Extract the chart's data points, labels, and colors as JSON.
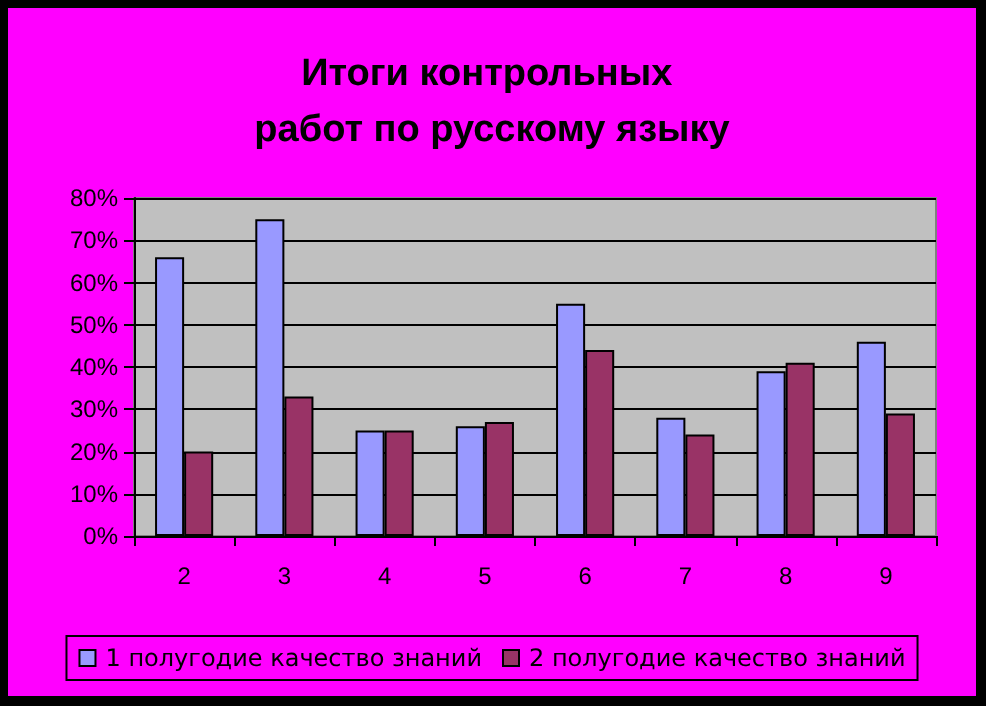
{
  "chart_data": {
    "type": "bar",
    "title": "Итоги контрольных работ по русскому языку",
    "categories": [
      "2",
      "3",
      "4",
      "5",
      "6",
      "7",
      "8",
      "9"
    ],
    "series": [
      {
        "name": "1 полугодие качество знаний",
        "color": "#9999ff",
        "values": [
          66,
          75,
          25,
          26,
          55,
          28,
          39,
          46
        ]
      },
      {
        "name": "2 полугодие качество знаний",
        "color": "#993366",
        "values": [
          20,
          33,
          25,
          27,
          44,
          24,
          41,
          29
        ]
      }
    ],
    "ylim": [
      0,
      80
    ],
    "yticks": [
      {
        "value": 0,
        "label": "0%"
      },
      {
        "value": 10,
        "label": "10%"
      },
      {
        "value": 20,
        "label": "20%"
      },
      {
        "value": 30,
        "label": "30%"
      },
      {
        "value": 40,
        "label": "40%"
      },
      {
        "value": 50,
        "label": "50%"
      },
      {
        "value": 60,
        "label": "60%"
      },
      {
        "value": 70,
        "label": "70%"
      },
      {
        "value": 80,
        "label": "80%"
      }
    ],
    "grid": "y",
    "legend": "bottom"
  }
}
